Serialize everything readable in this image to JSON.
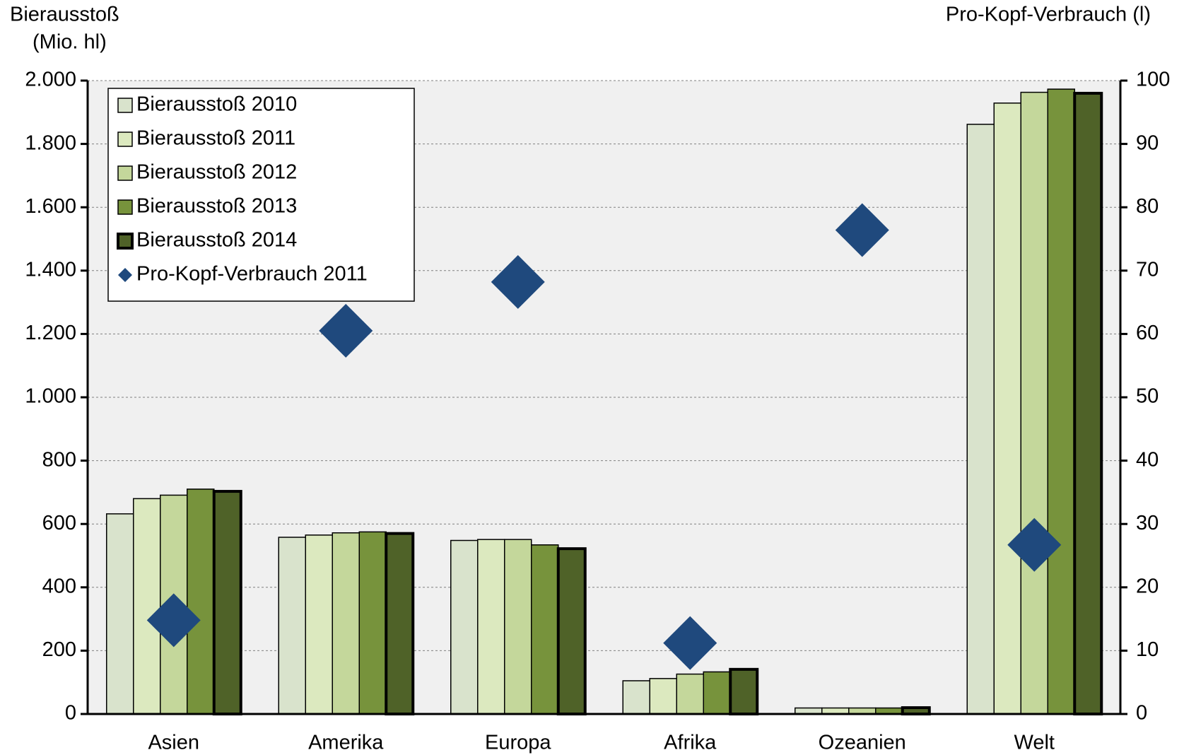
{
  "chart_data": {
    "type": "bar",
    "y_label": [
      "Bierausstoß",
      "(Mio. hl)"
    ],
    "y2_label": "Pro-Kopf-Verbrauch (l)",
    "categories": [
      "Asien",
      "Amerika",
      "Europa",
      "Afrika",
      "Ozeanien",
      "Welt"
    ],
    "series": [
      {
        "name": "Bierausstoß 2010",
        "color": "#d9e3cc",
        "values": [
          632,
          558,
          548,
          105,
          19,
          1862
        ]
      },
      {
        "name": "Bierausstoß 2011",
        "color": "#dce9bf",
        "values": [
          680,
          565,
          551,
          112,
          19,
          1929
        ]
      },
      {
        "name": "Bierausstoß 2012",
        "color": "#c4d79b",
        "values": [
          691,
          572,
          551,
          126,
          19,
          1963
        ]
      },
      {
        "name": "Bierausstoß 2013",
        "color": "#77933c",
        "values": [
          710,
          575,
          534,
          133,
          19,
          1973
        ]
      },
      {
        "name": "Bierausstoß 2014",
        "color": "#4f6228",
        "values": [
          703,
          570,
          522,
          141,
          20,
          1960
        ]
      },
      {
        "name": "Pro-Kopf-Verbrauch 2011",
        "color": "#1f497d",
        "type": "scatter",
        "axis": "y2",
        "values": [
          14.8,
          60.5,
          68.2,
          11.2,
          76.4,
          26.7
        ]
      }
    ],
    "ylim": [
      0,
      2000
    ],
    "yticks": [
      0,
      200,
      400,
      600,
      800,
      {
        "value": 1000,
        "label": "1.000"
      },
      {
        "value": 1200,
        "label": "1.200"
      },
      {
        "value": 1400,
        "label": "1.400"
      },
      {
        "value": 1600,
        "label": "1.600"
      },
      {
        "value": 1800,
        "label": "1.800"
      },
      {
        "value": 2000,
        "label": "2.000"
      }
    ],
    "y2lim": [
      0,
      100
    ],
    "y2ticks": [
      0,
      10,
      20,
      30,
      40,
      50,
      60,
      70,
      80,
      90,
      100
    ],
    "grid": true,
    "legend": "top-left"
  }
}
